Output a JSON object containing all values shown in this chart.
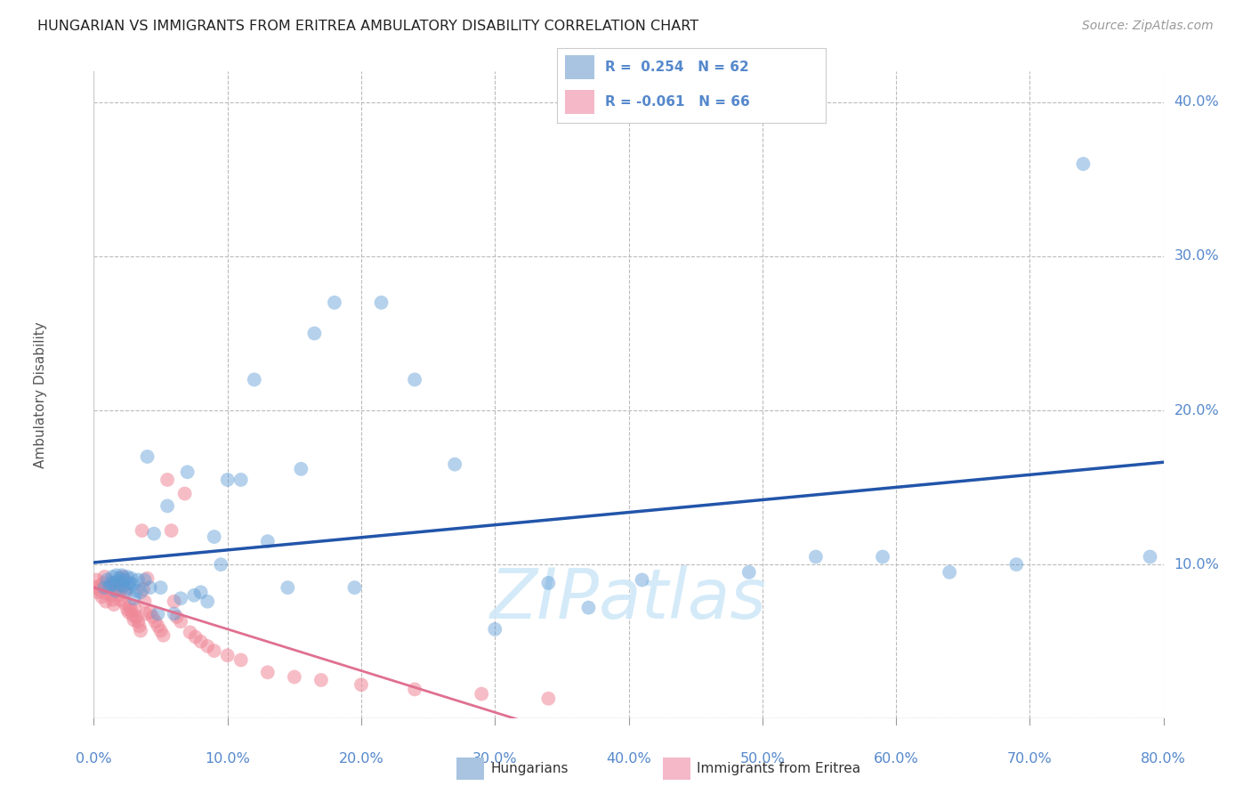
{
  "title": "HUNGARIAN VS IMMIGRANTS FROM ERITREA AMBULATORY DISABILITY CORRELATION CHART",
  "source": "Source: ZipAtlas.com",
  "ylabel": "Ambulatory Disability",
  "watermark": "ZIPatlas",
  "xlim": [
    0.0,
    0.8
  ],
  "ylim": [
    0.0,
    0.42
  ],
  "xticks": [
    0.0,
    0.1,
    0.2,
    0.3,
    0.4,
    0.5,
    0.6,
    0.7,
    0.8
  ],
  "xticklabels": [
    "0.0%",
    "10.0%",
    "20.0%",
    "30.0%",
    "40.0%",
    "50.0%",
    "60.0%",
    "70.0%",
    "80.0%"
  ],
  "yticks": [
    0.0,
    0.1,
    0.2,
    0.3,
    0.4
  ],
  "yticklabels_right": [
    "",
    "10.0%",
    "20.0%",
    "30.0%",
    "40.0%"
  ],
  "legend_color1": "#a8c4e0",
  "legend_color2": "#f4b8c8",
  "blue_color": "#5b9bd5",
  "pink_color": "#f08898",
  "blue_line_color": "#2255aa",
  "pink_line_color": "#e07090",
  "background_color": "#ffffff",
  "grid_color": "#bbbbbb",
  "axis_label_color": "#5588cc",
  "hungarian_x": [
    0.008,
    0.01,
    0.012,
    0.013,
    0.014,
    0.015,
    0.016,
    0.017,
    0.018,
    0.019,
    0.02,
    0.021,
    0.022,
    0.023,
    0.024,
    0.025,
    0.026,
    0.027,
    0.028,
    0.029,
    0.03,
    0.032,
    0.033,
    0.035,
    0.038,
    0.04,
    0.042,
    0.045,
    0.048,
    0.05,
    0.055,
    0.06,
    0.065,
    0.07,
    0.075,
    0.08,
    0.085,
    0.09,
    0.095,
    0.1,
    0.11,
    0.12,
    0.13,
    0.145,
    0.155,
    0.165,
    0.18,
    0.195,
    0.215,
    0.24,
    0.27,
    0.3,
    0.34,
    0.37,
    0.41,
    0.49,
    0.54,
    0.59,
    0.64,
    0.69,
    0.74,
    0.79
  ],
  "hungarian_y": [
    0.085,
    0.09,
    0.086,
    0.088,
    0.092,
    0.087,
    0.083,
    0.093,
    0.089,
    0.091,
    0.087,
    0.093,
    0.086,
    0.09,
    0.084,
    0.092,
    0.085,
    0.088,
    0.091,
    0.087,
    0.078,
    0.083,
    0.09,
    0.082,
    0.09,
    0.17,
    0.085,
    0.12,
    0.068,
    0.085,
    0.138,
    0.068,
    0.078,
    0.16,
    0.08,
    0.082,
    0.076,
    0.118,
    0.1,
    0.155,
    0.155,
    0.22,
    0.115,
    0.085,
    0.162,
    0.25,
    0.27,
    0.085,
    0.27,
    0.22,
    0.165,
    0.058,
    0.088,
    0.072,
    0.09,
    0.095,
    0.105,
    0.105,
    0.095,
    0.1,
    0.36,
    0.105
  ],
  "eritrea_x": [
    0.001,
    0.002,
    0.003,
    0.004,
    0.005,
    0.006,
    0.007,
    0.008,
    0.009,
    0.01,
    0.011,
    0.012,
    0.013,
    0.014,
    0.015,
    0.016,
    0.017,
    0.018,
    0.019,
    0.02,
    0.021,
    0.022,
    0.023,
    0.024,
    0.025,
    0.026,
    0.027,
    0.028,
    0.029,
    0.03,
    0.031,
    0.032,
    0.033,
    0.034,
    0.035,
    0.036,
    0.037,
    0.038,
    0.039,
    0.04,
    0.042,
    0.044,
    0.046,
    0.048,
    0.05,
    0.052,
    0.055,
    0.058,
    0.06,
    0.062,
    0.065,
    0.068,
    0.072,
    0.076,
    0.08,
    0.085,
    0.09,
    0.1,
    0.11,
    0.13,
    0.15,
    0.17,
    0.2,
    0.24,
    0.29,
    0.34
  ],
  "eritrea_y": [
    0.085,
    0.09,
    0.082,
    0.086,
    0.083,
    0.079,
    0.088,
    0.092,
    0.076,
    0.081,
    0.085,
    0.083,
    0.08,
    0.077,
    0.074,
    0.088,
    0.086,
    0.083,
    0.08,
    0.077,
    0.085,
    0.092,
    0.075,
    0.082,
    0.071,
    0.069,
    0.073,
    0.07,
    0.067,
    0.064,
    0.071,
    0.066,
    0.063,
    0.06,
    0.057,
    0.122,
    0.084,
    0.076,
    0.068,
    0.091,
    0.069,
    0.066,
    0.063,
    0.06,
    0.057,
    0.054,
    0.155,
    0.122,
    0.076,
    0.066,
    0.063,
    0.146,
    0.056,
    0.053,
    0.05,
    0.047,
    0.044,
    0.041,
    0.038,
    0.03,
    0.027,
    0.025,
    0.022,
    0.019,
    0.016,
    0.013
  ]
}
